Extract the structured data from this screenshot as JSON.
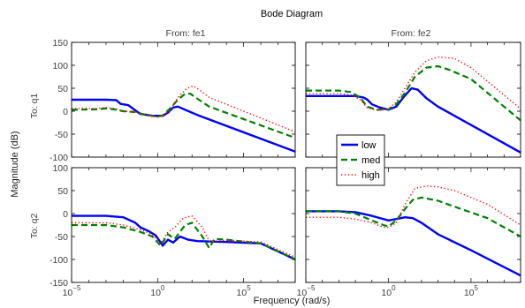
{
  "chart_data": {
    "type": "line",
    "title": "Bode Diagram",
    "xlabel": "Frequency  (rad/s)",
    "ylabel": "Magnitude (dB)",
    "x_scale": "log",
    "xlim": [
      1e-05,
      100000000.0
    ],
    "x_ticks": [
      {
        "value": 1e-05,
        "base": "10",
        "exp": "−5"
      },
      {
        "value": 1,
        "base": "10",
        "exp": "0"
      },
      {
        "value": 100000.0,
        "base": "10",
        "exp": "5"
      }
    ],
    "grid": false,
    "legend_position": "center",
    "legend": [
      "low",
      "med",
      "high"
    ],
    "column_titles": [
      "From: fe1",
      "From: fe2"
    ],
    "row_titles": [
      "To: q1",
      "To: q2"
    ],
    "styles": {
      "low": {
        "color": "#0000ff",
        "dash": "",
        "width": 2.4
      },
      "med": {
        "color": "#008000",
        "dash": "7 4",
        "width": 2.2
      },
      "high": {
        "color": "#ff0000",
        "dash": "1.3 2.6",
        "width": 1.4
      }
    },
    "panels": [
      {
        "row": 0,
        "col": 0,
        "ylim": [
          -100,
          150
        ],
        "y_ticks": [
          -100,
          -50,
          0,
          50,
          100,
          150
        ],
        "series": [
          {
            "name": "low",
            "points": [
              [
                1e-05,
                25
              ],
              [
                0.001,
                25
              ],
              [
                0.004,
                24
              ],
              [
                0.007,
                16
              ],
              [
                0.02,
                13
              ],
              [
                0.05,
                2
              ],
              [
                0.1,
                -6
              ],
              [
                0.5,
                -10
              ],
              [
                2,
                -10
              ],
              [
                4,
                -3
              ],
              [
                8,
                8
              ],
              [
                15,
                10
              ],
              [
                40,
                3
              ],
              [
                200,
                -8
              ],
              [
                100000000.0,
                -88
              ]
            ]
          },
          {
            "name": "med",
            "points": [
              [
                1e-05,
                3
              ],
              [
                0.0003,
                4
              ],
              [
                0.001,
                6
              ],
              [
                0.003,
                4
              ],
              [
                0.01,
                0
              ],
              [
                0.05,
                -2
              ],
              [
                0.2,
                -8
              ],
              [
                1,
                -12
              ],
              [
                2,
                -9
              ],
              [
                5,
                5
              ],
              [
                15,
                25
              ],
              [
                40,
                38
              ],
              [
                80,
                38
              ],
              [
                250,
                25
              ],
              [
                1000.0,
                10
              ],
              [
                100000000.0,
                -58
              ]
            ]
          },
          {
            "name": "high",
            "points": [
              [
                1e-05,
                6
              ],
              [
                0.0003,
                6
              ],
              [
                0.001,
                8
              ],
              [
                0.003,
                6
              ],
              [
                0.01,
                0
              ],
              [
                0.05,
                -2
              ],
              [
                0.2,
                -7
              ],
              [
                1,
                -13
              ],
              [
                2,
                -10
              ],
              [
                5,
                0
              ],
              [
                15,
                30
              ],
              [
                50,
                50
              ],
              [
                120,
                55
              ],
              [
                300,
                45
              ],
              [
                1000.0,
                30
              ],
              [
                100000000.0,
                -45
              ]
            ]
          }
        ]
      },
      {
        "row": 0,
        "col": 1,
        "ylim": [
          -100,
          150
        ],
        "y_ticks": [
          -100,
          -50,
          0,
          50,
          100,
          150
        ],
        "series": [
          {
            "name": "low",
            "points": [
              [
                1e-05,
                33
              ],
              [
                0.01,
                33
              ],
              [
                0.03,
                30
              ],
              [
                0.05,
                26
              ],
              [
                0.1,
                15
              ],
              [
                0.3,
                8
              ],
              [
                1,
                3
              ],
              [
                3,
                10
              ],
              [
                8,
                30
              ],
              [
                25,
                50
              ],
              [
                60,
                47
              ],
              [
                200,
                28
              ],
              [
                1000.0,
                10
              ],
              [
                100000000.0,
                -90
              ]
            ]
          },
          {
            "name": "med",
            "points": [
              [
                1e-05,
                45
              ],
              [
                0.001,
                45
              ],
              [
                0.005,
                42
              ],
              [
                0.02,
                30
              ],
              [
                0.05,
                10
              ],
              [
                0.2,
                3
              ],
              [
                1,
                4
              ],
              [
                3,
                15
              ],
              [
                10,
                40
              ],
              [
                40,
                75
              ],
              [
                200,
                95
              ],
              [
                1000.0,
                98
              ],
              [
                5000.0,
                90
              ],
              [
                100000.0,
                70
              ],
              [
                100000000.0,
                -20
              ]
            ]
          },
          {
            "name": "high",
            "points": [
              [
                1e-05,
                38
              ],
              [
                0.001,
                38
              ],
              [
                0.005,
                36
              ],
              [
                0.02,
                25
              ],
              [
                0.05,
                8
              ],
              [
                0.2,
                2
              ],
              [
                1,
                5
              ],
              [
                3,
                20
              ],
              [
                10,
                50
              ],
              [
                40,
                85
              ],
              [
                200,
                110
              ],
              [
                1000.0,
                118
              ],
              [
                10000.0,
                115
              ],
              [
                100000.0,
                95
              ],
              [
                100000000.0,
                5
              ]
            ]
          }
        ]
      },
      {
        "row": 1,
        "col": 0,
        "ylim": [
          -150,
          100
        ],
        "y_ticks": [
          -150,
          -100,
          -50,
          0,
          50,
          100
        ],
        "series": [
          {
            "name": "low",
            "points": [
              [
                1e-05,
                -5
              ],
              [
                0.001,
                -5
              ],
              [
                0.01,
                -8
              ],
              [
                0.05,
                -20
              ],
              [
                0.1,
                -30
              ],
              [
                0.3,
                -38
              ],
              [
                0.8,
                -48
              ],
              [
                2,
                -70
              ],
              [
                4,
                -57
              ],
              [
                8,
                -63
              ],
              [
                20,
                -50
              ],
              [
                60,
                -57
              ],
              [
                200,
                -60
              ],
              [
                10000.0,
                -62
              ],
              [
                1000000.0,
                -65
              ],
              [
                100000000.0,
                -100
              ]
            ]
          },
          {
            "name": "med",
            "points": [
              [
                1e-05,
                -25
              ],
              [
                0.001,
                -25
              ],
              [
                0.01,
                -30
              ],
              [
                0.1,
                -40
              ],
              [
                0.5,
                -50
              ],
              [
                1.5,
                -70
              ],
              [
                4,
                -45
              ],
              [
                10,
                -55
              ],
              [
                20,
                -40
              ],
              [
                40,
                -25
              ],
              [
                100,
                -20
              ],
              [
                400,
                -50
              ],
              [
                1000.0,
                -75
              ],
              [
                2000.0,
                -55
              ],
              [
                10000.0,
                -57
              ],
              [
                1000000.0,
                -65
              ],
              [
                100000000.0,
                -100
              ]
            ]
          },
          {
            "name": "high",
            "points": [
              [
                1e-05,
                -20
              ],
              [
                0.001,
                -20
              ],
              [
                0.01,
                -25
              ],
              [
                0.1,
                -35
              ],
              [
                0.5,
                -45
              ],
              [
                1.5,
                -65
              ],
              [
                4,
                -40
              ],
              [
                10,
                -30
              ],
              [
                30,
                -10
              ],
              [
                100,
                -5
              ],
              [
                400,
                -30
              ],
              [
                1000.0,
                -60
              ],
              [
                3000.0,
                -60
              ],
              [
                10000.0,
                -58
              ],
              [
                1000000.0,
                -62
              ],
              [
                100000000.0,
                -95
              ]
            ]
          }
        ]
      },
      {
        "row": 1,
        "col": 1,
        "ylim": [
          -150,
          100
        ],
        "y_ticks": [
          -150,
          -100,
          -50,
          0,
          50,
          100
        ],
        "series": [
          {
            "name": "low",
            "points": [
              [
                1e-05,
                5
              ],
              [
                0.001,
                5
              ],
              [
                0.01,
                3
              ],
              [
                0.1,
                -5
              ],
              [
                1,
                -15
              ],
              [
                3,
                -12
              ],
              [
                10,
                -8
              ],
              [
                30,
                -10
              ],
              [
                100,
                -20
              ],
              [
                1000.0,
                -45
              ],
              [
                100000.0,
                -80
              ],
              [
                100000000.0,
                -135
              ]
            ]
          },
          {
            "name": "med",
            "points": [
              [
                1e-05,
                5
              ],
              [
                0.001,
                5
              ],
              [
                0.01,
                0
              ],
              [
                0.1,
                -15
              ],
              [
                0.5,
                -25
              ],
              [
                1,
                -28
              ],
              [
                3,
                -15
              ],
              [
                10,
                10
              ],
              [
                30,
                30
              ],
              [
                100,
                35
              ],
              [
                1000.0,
                28
              ],
              [
                10000.0,
                15
              ],
              [
                1000000.0,
                -10
              ],
              [
                100000000.0,
                -50
              ]
            ]
          },
          {
            "name": "high",
            "points": [
              [
                1e-05,
                -8
              ],
              [
                0.001,
                -8
              ],
              [
                0.01,
                -12
              ],
              [
                0.1,
                -20
              ],
              [
                0.5,
                -30
              ],
              [
                1,
                -30
              ],
              [
                3,
                -20
              ],
              [
                10,
                20
              ],
              [
                40,
                55
              ],
              [
                200,
                60
              ],
              [
                1000.0,
                58
              ],
              [
                10000.0,
                50
              ],
              [
                1000000.0,
                20
              ],
              [
                100000000.0,
                -25
              ]
            ]
          }
        ]
      }
    ]
  }
}
